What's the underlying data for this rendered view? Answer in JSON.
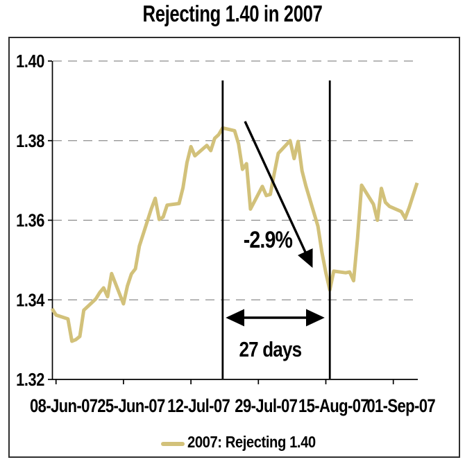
{
  "page": {
    "title": "Rejecting 1.40 in 2007"
  },
  "chart_data": {
    "type": "line",
    "title": "Rejecting 1.40 in 2007",
    "xlabel": "",
    "ylabel": "",
    "ylim": [
      1.32,
      1.4
    ],
    "yticks": [
      1.4,
      1.38,
      1.36,
      1.34,
      1.32
    ],
    "ytick_labels": [
      "1.40",
      "1.38",
      "1.36",
      "1.34",
      "1.32"
    ],
    "xtick_labels": [
      "08-Jun-07",
      "25-Jun-07",
      "12-Jul-07",
      "29-Jul-07",
      "15-Aug-07",
      "01-Sep-07"
    ],
    "grid": "horizontal-dashed",
    "legend_position": "bottom-center",
    "line_color": "#D2C17A",
    "grid_color": "#8c8c8c",
    "categories": [
      "07-Jun-07",
      "08-Jun-07",
      "11-Jun-07",
      "12-Jun-07",
      "13-Jun-07",
      "14-Jun-07",
      "15-Jun-07",
      "18-Jun-07",
      "19-Jun-07",
      "20-Jun-07",
      "21-Jun-07",
      "22-Jun-07",
      "25-Jun-07",
      "26-Jun-07",
      "27-Jun-07",
      "28-Jun-07",
      "29-Jun-07",
      "02-Jul-07",
      "03-Jul-07",
      "04-Jul-07",
      "05-Jul-07",
      "06-Jul-07",
      "09-Jul-07",
      "10-Jul-07",
      "11-Jul-07",
      "12-Jul-07",
      "13-Jul-07",
      "16-Jul-07",
      "17-Jul-07",
      "18-Jul-07",
      "19-Jul-07",
      "20-Jul-07",
      "23-Jul-07",
      "24-Jul-07",
      "25-Jul-07",
      "26-Jul-07",
      "27-Jul-07",
      "30-Jul-07",
      "31-Jul-07",
      "01-Aug-07",
      "02-Aug-07",
      "03-Aug-07",
      "06-Aug-07",
      "07-Aug-07",
      "08-Aug-07",
      "09-Aug-07",
      "10-Aug-07",
      "13-Aug-07",
      "14-Aug-07",
      "15-Aug-07",
      "16-Aug-07",
      "17-Aug-07",
      "20-Aug-07",
      "21-Aug-07",
      "22-Aug-07",
      "23-Aug-07",
      "24-Aug-07",
      "27-Aug-07",
      "28-Aug-07",
      "29-Aug-07",
      "30-Aug-07",
      "31-Aug-07",
      "03-Sep-07",
      "04-Sep-07",
      "05-Sep-07",
      "06-Sep-07",
      "07-Sep-07"
    ],
    "series": [
      {
        "name": "2007: Rejecting 1.40",
        "color": "#D2C17A",
        "values": [
          1.3378,
          1.3362,
          1.3352,
          1.3296,
          1.33,
          1.3308,
          1.3374,
          1.3402,
          1.3418,
          1.343,
          1.3408,
          1.3466,
          1.339,
          1.3435,
          1.3465,
          1.3478,
          1.3535,
          1.3628,
          1.3655,
          1.3602,
          1.3608,
          1.3638,
          1.3642,
          1.3682,
          1.3745,
          1.3785,
          1.3762,
          1.3788,
          1.3775,
          1.3806,
          1.3815,
          1.3832,
          1.3825,
          1.3792,
          1.3728,
          1.3742,
          1.3628,
          1.3685,
          1.3662,
          1.3665,
          1.3718,
          1.3768,
          1.38,
          1.3755,
          1.3798,
          1.3724,
          1.3685,
          1.3585,
          1.352,
          1.3468,
          1.3425,
          1.3472,
          1.3468,
          1.347,
          1.3448,
          1.3555,
          1.3688,
          1.364,
          1.36,
          1.368,
          1.3645,
          1.3635,
          1.3622,
          1.3605,
          1.3632,
          1.3663,
          1.3694
        ]
      }
    ],
    "annotations": {
      "drop_label": "-2.9%",
      "span_label": "27 days",
      "vline_dates": [
        "20-Jul-07",
        "16-Aug-07"
      ]
    }
  },
  "legend": {
    "label": "2007: Rejecting 1.40"
  }
}
